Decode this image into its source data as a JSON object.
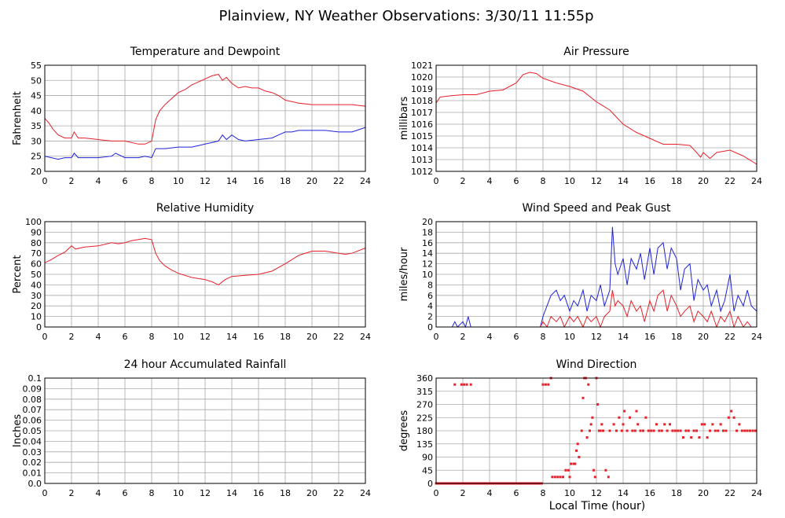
{
  "title": "Plainview, NY Weather Observations: 3/30/11 11:55p",
  "xlabel_global": "Local Time (hour)",
  "colors": {
    "red": "#e8202a",
    "blue": "#1e22d8"
  },
  "chart_data": [
    {
      "type": "line",
      "title": "Temperature and Dewpoint",
      "xlabel": "",
      "ylabel": "Fahrenheit",
      "xlim": [
        0,
        24
      ],
      "ylim": [
        20,
        55
      ],
      "xticks": [
        0,
        2,
        4,
        6,
        8,
        10,
        12,
        14,
        16,
        18,
        20,
        22,
        24
      ],
      "yticks": [
        20,
        25,
        30,
        35,
        40,
        45,
        50,
        55
      ],
      "series": [
        {
          "color": "#e8202a",
          "x": [
            0,
            0.3,
            0.6,
            1,
            1.5,
            2,
            2.2,
            2.5,
            3,
            4,
            5,
            6,
            7,
            7.5,
            8,
            8.3,
            8.6,
            9,
            9.5,
            10,
            10.5,
            11,
            11.5,
            12,
            12.5,
            13,
            13.3,
            13.6,
            14,
            14.5,
            15,
            15.5,
            16,
            16.5,
            17,
            17.5,
            18,
            18.5,
            19,
            20,
            21,
            22,
            23,
            24
          ],
          "y": [
            37.5,
            36,
            34,
            32,
            31,
            31,
            33,
            31,
            31,
            30.5,
            30,
            30,
            29,
            29,
            30,
            37,
            40,
            42,
            44,
            46,
            47,
            48.5,
            49.5,
            50.5,
            51.5,
            52,
            50,
            51,
            49,
            47.5,
            48,
            47.5,
            47.5,
            46.5,
            46,
            45,
            43.5,
            43,
            42.5,
            42,
            42,
            42,
            42,
            41.5
          ]
        },
        {
          "color": "#1e22d8",
          "x": [
            0,
            0.5,
            1,
            1.5,
            2,
            2.2,
            2.5,
            3,
            4,
            5,
            5.3,
            6,
            7,
            7.5,
            8,
            8.3,
            9,
            10,
            10.5,
            11,
            11.5,
            12,
            12.5,
            13,
            13.3,
            13.6,
            14,
            14.5,
            15,
            16,
            17,
            17.5,
            18,
            18.5,
            19,
            20,
            21,
            22,
            23,
            24
          ],
          "y": [
            25,
            24.5,
            24,
            24.5,
            24.5,
            26,
            24.5,
            24.5,
            24.5,
            25,
            26,
            24.5,
            24.5,
            25,
            24.5,
            27.5,
            27.5,
            28,
            28,
            28,
            28.5,
            29,
            29.5,
            30,
            32,
            30.5,
            32,
            30.5,
            30,
            30.5,
            31,
            32,
            33,
            33,
            33.5,
            33.5,
            33.5,
            33,
            33,
            34.5
          ]
        }
      ]
    },
    {
      "type": "line",
      "title": "Air Pressure",
      "xlabel": "",
      "ylabel": "millibars",
      "xlim": [
        0,
        24
      ],
      "ylim": [
        1012,
        1021
      ],
      "xticks": [
        0,
        2,
        4,
        6,
        8,
        10,
        12,
        14,
        16,
        18,
        20,
        22,
        24
      ],
      "yticks": [
        1012,
        1013,
        1014,
        1015,
        1016,
        1017,
        1018,
        1019,
        1020,
        1021
      ],
      "series": [
        {
          "color": "#e8202a",
          "x": [
            0,
            0.3,
            1,
            2,
            3,
            4,
            5,
            6,
            6.5,
            7,
            7.5,
            8,
            9,
            10,
            11,
            12,
            13,
            13.5,
            14,
            15,
            16,
            17,
            18,
            19,
            19.5,
            19.8,
            20,
            20.5,
            21,
            22,
            23,
            24
          ],
          "y": [
            1017.8,
            1018.3,
            1018.4,
            1018.5,
            1018.5,
            1018.8,
            1018.9,
            1019.5,
            1020.2,
            1020.4,
            1020.3,
            1019.9,
            1019.5,
            1019.2,
            1018.8,
            1017.9,
            1017.2,
            1016.6,
            1016.0,
            1015.3,
            1014.8,
            1014.3,
            1014.3,
            1014.2,
            1013.6,
            1013.2,
            1013.6,
            1013.1,
            1013.6,
            1013.8,
            1013.3,
            1012.6
          ]
        }
      ]
    },
    {
      "type": "line",
      "title": "Relative Humidity",
      "xlabel": "",
      "ylabel": "Percent",
      "xlim": [
        0,
        24
      ],
      "ylim": [
        0,
        100
      ],
      "xticks": [
        0,
        2,
        4,
        6,
        8,
        10,
        12,
        14,
        16,
        18,
        20,
        22,
        24
      ],
      "yticks": [
        0,
        10,
        20,
        30,
        40,
        50,
        60,
        70,
        80,
        90,
        100
      ],
      "series": [
        {
          "color": "#e8202a",
          "x": [
            0,
            0.5,
            1,
            1.5,
            2,
            2.3,
            3,
            4,
            5,
            5.5,
            6,
            6.5,
            7,
            7.5,
            8,
            8.3,
            8.6,
            9,
            9.5,
            10,
            11,
            12,
            12.5,
            13,
            13.5,
            14,
            15,
            16,
            17,
            18,
            19,
            20,
            21,
            22,
            22.5,
            23,
            24
          ],
          "y": [
            61,
            64,
            68,
            71,
            77,
            74,
            76,
            77,
            80,
            79,
            80,
            82,
            83,
            84,
            83,
            70,
            63,
            58,
            54,
            51,
            47,
            45,
            43,
            40,
            45,
            48,
            49,
            50,
            53,
            60,
            68,
            72,
            72,
            70,
            69,
            70,
            75
          ]
        }
      ]
    },
    {
      "type": "line",
      "title": "Wind Speed and Peak Gust",
      "xlabel": "",
      "ylabel": "miles/hour",
      "xlim": [
        0,
        24
      ],
      "ylim": [
        0,
        20
      ],
      "xticks": [
        0,
        2,
        4,
        6,
        8,
        10,
        12,
        14,
        16,
        18,
        20,
        22,
        24
      ],
      "yticks": [
        0,
        2,
        4,
        6,
        8,
        10,
        12,
        14,
        16,
        18,
        20
      ],
      "series": [
        {
          "color": "#1e22d8",
          "x": [
            0,
            1.2,
            1.4,
            1.6,
            2,
            2.2,
            2.4,
            2.6,
            2.8,
            3,
            7.8,
            8,
            8.3,
            8.6,
            9,
            9.3,
            9.6,
            10,
            10.3,
            10.6,
            11,
            11.3,
            11.6,
            12,
            12.3,
            12.6,
            13,
            13.2,
            13.4,
            13.6,
            14,
            14.3,
            14.6,
            15,
            15.3,
            15.6,
            16,
            16.3,
            16.6,
            17,
            17.3,
            17.6,
            18,
            18.3,
            18.6,
            19,
            19.3,
            19.6,
            20,
            20.3,
            20.6,
            21,
            21.3,
            21.6,
            22,
            22.3,
            22.6,
            23,
            23.3,
            23.6,
            24
          ],
          "y": [
            0,
            0,
            1,
            0,
            1,
            0,
            2,
            0,
            0,
            0,
            0,
            2,
            4,
            6,
            7,
            5,
            6,
            3,
            5,
            4,
            7,
            3,
            6,
            5,
            8,
            4,
            7,
            19,
            12,
            10,
            13,
            8,
            13,
            11,
            14,
            9,
            15,
            10,
            15,
            16,
            11,
            15,
            13,
            7,
            11,
            12,
            5,
            9,
            7,
            8,
            4,
            7,
            3,
            5,
            10,
            3,
            6,
            4,
            7,
            4,
            3
          ]
        },
        {
          "color": "#e8202a",
          "x": [
            0,
            7.8,
            8,
            8.3,
            8.6,
            9,
            9.3,
            9.6,
            10,
            10.3,
            10.6,
            11,
            11.3,
            11.6,
            12,
            12.3,
            12.6,
            13,
            13.2,
            13.4,
            13.6,
            14,
            14.3,
            14.6,
            15,
            15.3,
            15.6,
            16,
            16.3,
            16.6,
            17,
            17.3,
            17.6,
            18,
            18.3,
            18.6,
            19,
            19.3,
            19.6,
            20,
            20.3,
            20.6,
            21,
            21.3,
            21.6,
            22,
            22.3,
            22.6,
            23,
            23.3,
            23.6,
            24
          ],
          "y": [
            0,
            0,
            1,
            0,
            2,
            1,
            2,
            0,
            2,
            1,
            2,
            0,
            2,
            1,
            2,
            0,
            2,
            3,
            7,
            4,
            5,
            4,
            2,
            5,
            3,
            4,
            1,
            5,
            3,
            6,
            7,
            3,
            6,
            4,
            2,
            3,
            4,
            1,
            3,
            2,
            1,
            3,
            0,
            2,
            1,
            3,
            0,
            2,
            0,
            1,
            0,
            0
          ]
        }
      ]
    },
    {
      "type": "line",
      "title": "24 hour Accumulated Rainfall",
      "xlabel": "",
      "ylabel": "Inches",
      "xlim": [
        0,
        24
      ],
      "ylim": [
        0,
        0.1
      ],
      "xticks": [
        0,
        2,
        4,
        6,
        8,
        10,
        12,
        14,
        16,
        18,
        20,
        22,
        24
      ],
      "yticks": [
        "0.0",
        "0.01",
        "0.02",
        "0.03",
        "0.04",
        "0.05",
        "0.06",
        "0.07",
        "0.08",
        "0.09",
        "0.1"
      ],
      "series": [
        {
          "color": "#e8202a",
          "x": [
            0,
            24
          ],
          "y": [
            0,
            0
          ]
        }
      ]
    },
    {
      "type": "scatter",
      "title": "Wind Direction",
      "xlabel": "Local Time (hour)",
      "ylabel": "degrees",
      "xlim": [
        0,
        24
      ],
      "ylim": [
        0,
        360
      ],
      "xticks": [
        0,
        2,
        4,
        6,
        8,
        10,
        12,
        14,
        16,
        18,
        20,
        22,
        24
      ],
      "yticks": [
        0,
        45,
        90,
        135,
        180,
        225,
        270,
        315,
        360
      ],
      "series": [
        {
          "color": "#e8202a",
          "x": [
            1.4,
            1.9,
            2.1,
            2.3,
            2.6,
            8.0,
            8.2,
            8.4,
            8.6,
            8.7,
            8.9,
            9.1,
            9.3,
            9.5,
            9.7,
            9.9,
            10.0,
            10.1,
            10.3,
            10.4,
            10.5,
            10.6,
            10.7,
            10.9,
            11.0,
            11.1,
            11.2,
            11.3,
            11.4,
            11.5,
            11.6,
            11.7,
            11.8,
            11.9,
            12.0,
            12.1,
            12.2,
            12.3,
            12.4,
            12.5,
            12.7,
            12.9,
            13.0,
            13.3,
            13.5,
            13.7,
            13.9,
            14.0,
            14.1,
            14.3,
            14.5,
            14.7,
            14.9,
            15.0,
            15.1,
            15.3,
            15.5,
            15.7,
            15.9,
            16.1,
            16.3,
            16.5,
            16.7,
            16.9,
            17.1,
            17.3,
            17.5,
            17.7,
            17.9,
            18.1,
            18.3,
            18.5,
            18.7,
            18.9,
            19.1,
            19.3,
            19.5,
            19.7,
            19.9,
            20.1,
            20.3,
            20.5,
            20.7,
            20.9,
            21.1,
            21.3,
            21.5,
            21.7,
            21.9,
            22.1,
            22.3,
            22.5,
            22.7,
            22.9,
            23.1,
            23.3,
            23.5,
            23.7,
            23.9
          ],
          "y": [
            338,
            338,
            338,
            338,
            338,
            338,
            338,
            338,
            360,
            22,
            22,
            22,
            22,
            22,
            45,
            45,
            22,
            67,
            67,
            67,
            112,
            135,
            90,
            180,
            292,
            360,
            360,
            157,
            338,
            180,
            202,
            225,
            45,
            22,
            360,
            270,
            180,
            180,
            202,
            180,
            45,
            22,
            180,
            202,
            180,
            225,
            180,
            202,
            247,
            180,
            225,
            180,
            180,
            247,
            202,
            180,
            180,
            225,
            180,
            180,
            180,
            202,
            180,
            180,
            202,
            180,
            202,
            180,
            180,
            180,
            180,
            157,
            180,
            180,
            157,
            180,
            180,
            157,
            202,
            202,
            157,
            180,
            202,
            180,
            180,
            202,
            180,
            180,
            225,
            247,
            225,
            180,
            202,
            180,
            180,
            180,
            180,
            180,
            180
          ]
        }
      ]
    }
  ]
}
